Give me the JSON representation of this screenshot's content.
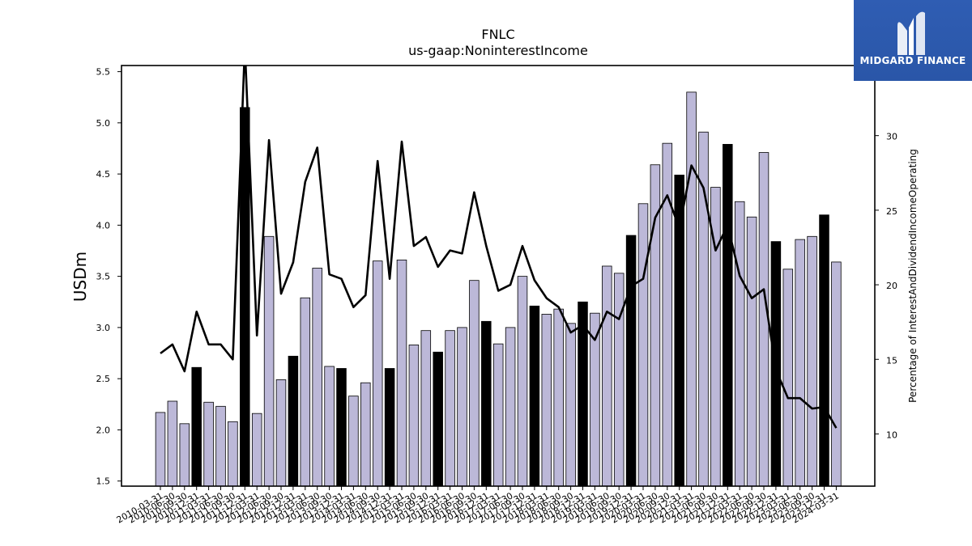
{
  "chart_data": {
    "type": "bar",
    "title": "FNLC",
    "subtitle": "us-gaap:NoninterestIncome",
    "ylabel": "USDm",
    "y2label": "Percentage of InterestAndDividendIncomeOperating",
    "ylim": [
      1.45,
      5.56
    ],
    "y2lim": [
      6.5,
      34.7
    ],
    "yticks": [
      "1.5",
      "2.0",
      "2.5",
      "3.0",
      "3.5",
      "4.0",
      "4.5",
      "5.0",
      "5.5"
    ],
    "y2ticks": [
      "10",
      "15",
      "20",
      "25",
      "30"
    ],
    "categories": [
      "2010-03-31",
      "2010-06-30",
      "2010-09-30",
      "2010-12-31",
      "2011-03-31",
      "2011-06-30",
      "2011-09-30",
      "2011-12-31",
      "2012-03-31",
      "2012-06-30",
      "2012-09-30",
      "2012-12-31",
      "2013-03-31",
      "2013-06-30",
      "2013-09-30",
      "2013-12-31",
      "2014-03-31",
      "2014-06-30",
      "2014-09-30",
      "2014-12-31",
      "2015-03-31",
      "2015-06-30",
      "2015-09-30",
      "2015-12-31",
      "2016-03-31",
      "2016-06-30",
      "2016-09-30",
      "2016-12-31",
      "2017-03-31",
      "2017-06-30",
      "2017-09-30",
      "2017-12-31",
      "2018-03-31",
      "2018-06-30",
      "2018-09-30",
      "2018-12-31",
      "2019-03-31",
      "2019-06-30",
      "2019-09-30",
      "2019-12-31",
      "2020-03-31",
      "2020-06-30",
      "2020-09-30",
      "2020-12-31",
      "2021-03-31",
      "2021-06-30",
      "2021-09-30",
      "2021-12-31",
      "2022-03-31",
      "2022-06-30",
      "2022-09-30",
      "2022-12-31",
      "2023-03-31",
      "2023-06-30",
      "2023-09-30",
      "2023-12-31",
      "2024-03-31"
    ],
    "series": [
      {
        "type": "bar",
        "values": [
          2.17,
          2.28,
          2.06,
          2.61,
          2.27,
          2.23,
          2.08,
          5.15,
          2.16,
          3.89,
          2.49,
          2.72,
          3.29,
          3.58,
          2.62,
          2.6,
          2.33,
          2.46,
          3.65,
          2.6,
          3.66,
          2.83,
          2.97,
          2.76,
          2.97,
          3.0,
          3.46,
          3.06,
          2.84,
          3.0,
          3.5,
          3.21,
          3.13,
          3.18,
          3.04,
          3.25,
          3.14,
          3.6,
          3.53,
          3.9,
          4.21,
          4.59,
          4.8,
          4.49,
          5.3,
          4.91,
          4.37,
          4.79,
          4.23,
          4.08,
          4.71,
          3.84,
          3.57,
          3.86,
          3.89,
          4.1,
          3.64
        ],
        "highlight": [
          false,
          false,
          false,
          true,
          false,
          false,
          false,
          true,
          false,
          false,
          false,
          true,
          false,
          false,
          false,
          true,
          false,
          false,
          false,
          true,
          false,
          false,
          false,
          true,
          false,
          false,
          false,
          true,
          false,
          false,
          false,
          true,
          false,
          false,
          false,
          true,
          false,
          false,
          false,
          true,
          false,
          false,
          false,
          true,
          false,
          false,
          false,
          true,
          false,
          false,
          false,
          true,
          false,
          false,
          false,
          true,
          false
        ]
      },
      {
        "type": "line",
        "axis": "right",
        "values": [
          15.4,
          16.0,
          14.2,
          18.2,
          16.0,
          16.0,
          15.0,
          36.0,
          16.6,
          29.7,
          19.4,
          21.5,
          26.9,
          29.2,
          20.7,
          20.4,
          18.5,
          19.3,
          28.3,
          20.4,
          29.6,
          22.6,
          23.2,
          21.2,
          22.3,
          22.1,
          26.2,
          22.6,
          19.6,
          20.0,
          22.6,
          20.3,
          19.1,
          18.5,
          16.8,
          17.3,
          16.3,
          18.2,
          17.7,
          19.9,
          20.4,
          24.5,
          26.0,
          23.8,
          28.0,
          26.5,
          22.3,
          24.0,
          20.6,
          19.1,
          19.7,
          14.3,
          12.4,
          12.4,
          11.7,
          11.8,
          10.4
        ]
      }
    ],
    "colors": {
      "bar": "#bcb8d8",
      "bar_highlight": "#000000",
      "bar_edge": "#000000",
      "line": "#000000"
    },
    "grid": false,
    "legend": "none"
  },
  "logo": {
    "text": "MIDGARD FINANCE",
    "icon": "midgard-logo-icon",
    "background": "#2a56a8"
  }
}
